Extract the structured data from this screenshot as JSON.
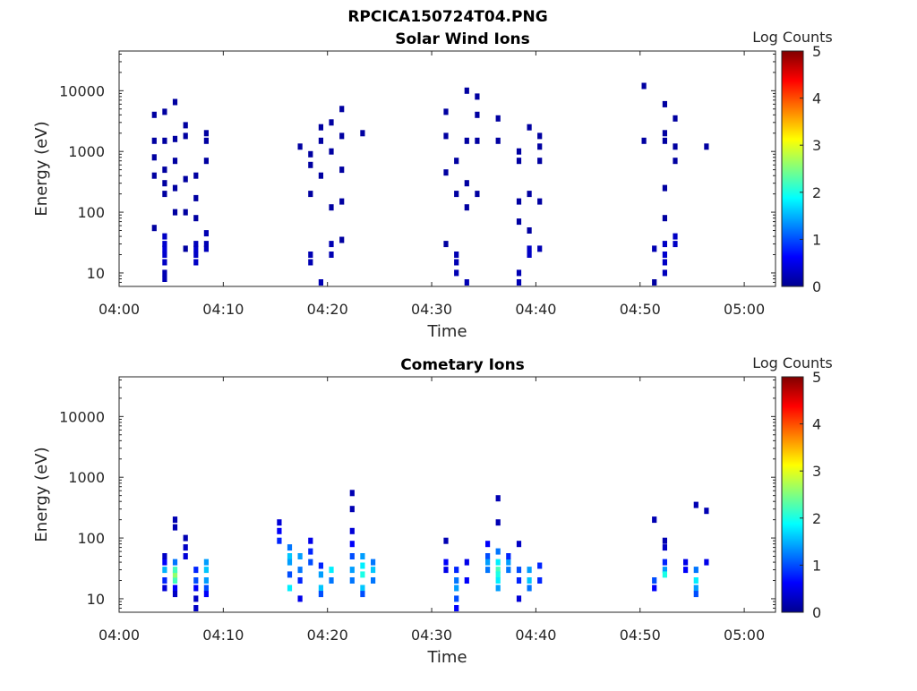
{
  "figure_title": "RPCICA150724T04.PNG",
  "colors": {
    "colormap": [
      "#00008f",
      "#0000ff",
      "#0080ff",
      "#00ffff",
      "#80ff80",
      "#ffff00",
      "#ff8000",
      "#ff0000",
      "#800000"
    ],
    "axis": "#262626"
  },
  "chart_data": [
    {
      "type": "heatmap",
      "title": "Solar Wind Ions",
      "xlabel": "Time",
      "ylabel": "Energy (eV)",
      "xlim": [
        "04:00",
        "05:03"
      ],
      "ylim": [
        6,
        45000
      ],
      "yscale": "log",
      "xticks": [
        "04:00",
        "04:10",
        "04:20",
        "04:30",
        "04:40",
        "04:50",
        "05:00"
      ],
      "yticks": [
        10,
        100,
        1000,
        10000
      ],
      "ytick_labels": [
        "10",
        "100",
        "1000",
        "10000"
      ],
      "colorbar": {
        "label": "Log Counts",
        "range": [
          0,
          5
        ],
        "ticks": [
          "0",
          "1",
          "2",
          "3",
          "4",
          "5"
        ]
      },
      "grid": false,
      "data": [
        [
          "04:04",
          15,
          0.3
        ],
        [
          "04:04",
          20,
          0.35
        ],
        [
          "04:04",
          25,
          0.4
        ],
        [
          "04:04",
          30,
          0.35
        ],
        [
          "04:04",
          10,
          0.2
        ],
        [
          "04:04",
          8,
          0.2
        ],
        [
          "04:04",
          40,
          0.3
        ],
        [
          "04:04",
          300,
          0.1
        ],
        [
          "04:04",
          500,
          0.1
        ],
        [
          "04:04",
          1500,
          0.1
        ],
        [
          "04:04",
          4500,
          0.1
        ],
        [
          "04:04",
          200,
          0.1
        ],
        [
          "04:05",
          6500,
          0.1
        ],
        [
          "04:05",
          700,
          0.1
        ],
        [
          "04:05",
          250,
          0.1
        ],
        [
          "04:05",
          1600,
          0.1
        ],
        [
          "04:05",
          100,
          0.1
        ],
        [
          "04:06",
          100,
          0.1
        ],
        [
          "04:06",
          350,
          0.1
        ],
        [
          "04:06",
          1800,
          0.1
        ],
        [
          "04:06",
          2700,
          0.1
        ],
        [
          "04:06",
          25,
          0.1
        ],
        [
          "04:07",
          20,
          0.3
        ],
        [
          "04:07",
          25,
          0.35
        ],
        [
          "04:07",
          15,
          0.3
        ],
        [
          "04:07",
          30,
          0.25
        ],
        [
          "04:07",
          80,
          0.1
        ],
        [
          "04:07",
          170,
          0.1
        ],
        [
          "04:07",
          400,
          0.1
        ],
        [
          "04:08",
          25,
          0.25
        ],
        [
          "04:08",
          30,
          0.2
        ],
        [
          "04:08",
          45,
          0.2
        ],
        [
          "04:08",
          1500,
          0.1
        ],
        [
          "04:08",
          2000,
          0.1
        ],
        [
          "04:08",
          700,
          0.1
        ],
        [
          "04:03",
          4000,
          0.1
        ],
        [
          "04:03",
          1500,
          0.1
        ],
        [
          "04:03",
          800,
          0.1
        ],
        [
          "04:03",
          400,
          0.1
        ],
        [
          "04:03",
          55,
          0.1
        ],
        [
          "04:17",
          1200,
          0.1
        ],
        [
          "04:18",
          20,
          0.2
        ],
        [
          "04:18",
          15,
          0.2
        ],
        [
          "04:18",
          600,
          0.1
        ],
        [
          "04:18",
          900,
          0.1
        ],
        [
          "04:18",
          200,
          0.1
        ],
        [
          "04:19",
          7,
          0.2
        ],
        [
          "04:19",
          2500,
          0.1
        ],
        [
          "04:19",
          1500,
          0.1
        ],
        [
          "04:19",
          400,
          0.1
        ],
        [
          "04:20",
          20,
          0.2
        ],
        [
          "04:20",
          30,
          0.2
        ],
        [
          "04:20",
          120,
          0.1
        ],
        [
          "04:20",
          1000,
          0.1
        ],
        [
          "04:20",
          3000,
          0.1
        ],
        [
          "04:21",
          35,
          0.1
        ],
        [
          "04:21",
          150,
          0.1
        ],
        [
          "04:21",
          500,
          0.1
        ],
        [
          "04:21",
          1800,
          0.1
        ],
        [
          "04:21",
          5000,
          0.1
        ],
        [
          "04:23",
          2000,
          0.1
        ],
        [
          "04:31",
          4500,
          0.1
        ],
        [
          "04:31",
          1800,
          0.1
        ],
        [
          "04:31",
          30,
          0.1
        ],
        [
          "04:31",
          450,
          0.1
        ],
        [
          "04:32",
          20,
          0.2
        ],
        [
          "04:32",
          15,
          0.2
        ],
        [
          "04:32",
          10,
          0.2
        ],
        [
          "04:32",
          200,
          0.1
        ],
        [
          "04:32",
          700,
          0.1
        ],
        [
          "04:33",
          7,
          0.2
        ],
        [
          "04:33",
          10000,
          0.1
        ],
        [
          "04:33",
          120,
          0.1
        ],
        [
          "04:33",
          1500,
          0.1
        ],
        [
          "04:33",
          300,
          0.1
        ],
        [
          "04:34",
          8000,
          0.1
        ],
        [
          "04:34",
          4000,
          0.1
        ],
        [
          "04:34",
          1500,
          0.1
        ],
        [
          "04:34",
          200,
          0.1
        ],
        [
          "04:36",
          1500,
          0.1
        ],
        [
          "04:36",
          3500,
          0.1
        ],
        [
          "04:38",
          150,
          0.1
        ],
        [
          "04:38",
          70,
          0.1
        ],
        [
          "04:38",
          700,
          0.1
        ],
        [
          "04:38",
          1000,
          0.1
        ],
        [
          "04:38",
          10,
          0.2
        ],
        [
          "04:38",
          7,
          0.2
        ],
        [
          "04:39",
          20,
          0.3
        ],
        [
          "04:39",
          25,
          0.3
        ],
        [
          "04:39",
          200,
          0.1
        ],
        [
          "04:39",
          2500,
          0.1
        ],
        [
          "04:39",
          50,
          0.1
        ],
        [
          "04:40",
          700,
          0.1
        ],
        [
          "04:40",
          1200,
          0.1
        ],
        [
          "04:40",
          150,
          0.1
        ],
        [
          "04:40",
          25,
          0.2
        ],
        [
          "04:40",
          1800,
          0.1
        ],
        [
          "04:50",
          12000,
          0.1
        ],
        [
          "04:50",
          1500,
          0.1
        ],
        [
          "04:51",
          25,
          0.2
        ],
        [
          "04:51",
          7,
          0.1
        ],
        [
          "04:52",
          30,
          0.3
        ],
        [
          "04:52",
          20,
          0.35
        ],
        [
          "04:52",
          15,
          0.3
        ],
        [
          "04:52",
          10,
          0.25
        ],
        [
          "04:52",
          2000,
          0.1
        ],
        [
          "04:52",
          6000,
          0.1
        ],
        [
          "04:52",
          1500,
          0.1
        ],
        [
          "04:52",
          250,
          0.1
        ],
        [
          "04:52",
          80,
          0.1
        ],
        [
          "04:53",
          40,
          0.3
        ],
        [
          "04:53",
          30,
          0.3
        ],
        [
          "04:53",
          1200,
          0.1
        ],
        [
          "04:53",
          3500,
          0.1
        ],
        [
          "04:53",
          700,
          0.1
        ],
        [
          "04:56",
          1200,
          0.1
        ]
      ]
    },
    {
      "type": "heatmap",
      "title": "Cometary Ions",
      "xlabel": "Time",
      "ylabel": "Energy (eV)",
      "xlim": [
        "04:00",
        "05:03"
      ],
      "ylim": [
        6,
        45000
      ],
      "yscale": "log",
      "xticks": [
        "04:00",
        "04:10",
        "04:20",
        "04:30",
        "04:40",
        "04:50",
        "05:00"
      ],
      "yticks": [
        10,
        100,
        1000,
        10000
      ],
      "ytick_labels": [
        "10",
        "100",
        "1000",
        "10000"
      ],
      "colorbar": {
        "label": "Log Counts",
        "range": [
          0,
          5
        ],
        "ticks": [
          "0",
          "1",
          "2",
          "3",
          "4",
          "5"
        ]
      },
      "grid": false,
      "data": [
        [
          "04:04",
          15,
          0.4
        ],
        [
          "04:04",
          20,
          0.8
        ],
        [
          "04:04",
          30,
          1.5
        ],
        [
          "04:04",
          40,
          0.6
        ],
        [
          "04:04",
          50,
          0.3
        ],
        [
          "04:05",
          20,
          2.2
        ],
        [
          "04:05",
          25,
          2.6
        ],
        [
          "04:05",
          30,
          2.2
        ],
        [
          "04:05",
          15,
          0.6
        ],
        [
          "04:05",
          40,
          1.2
        ],
        [
          "04:05",
          12,
          0.3
        ],
        [
          "04:05",
          200,
          0.2
        ],
        [
          "04:05",
          150,
          0.2
        ],
        [
          "04:06",
          100,
          0.2
        ],
        [
          "04:06",
          70,
          0.3
        ],
        [
          "04:06",
          50,
          0.4
        ],
        [
          "04:07",
          30,
          0.8
        ],
        [
          "04:07",
          20,
          1.0
        ],
        [
          "04:07",
          15,
          0.6
        ],
        [
          "04:07",
          10,
          0.3
        ],
        [
          "04:07",
          7,
          0.3
        ],
        [
          "04:08",
          40,
          1.4
        ],
        [
          "04:08",
          30,
          1.6
        ],
        [
          "04:08",
          20,
          1.4
        ],
        [
          "04:08",
          15,
          1.0
        ],
        [
          "04:08",
          12,
          0.6
        ],
        [
          "04:15",
          180,
          0.4
        ],
        [
          "04:15",
          130,
          0.6
        ],
        [
          "04:15",
          90,
          0.8
        ],
        [
          "04:16",
          70,
          1.2
        ],
        [
          "04:16",
          50,
          1.6
        ],
        [
          "04:16",
          40,
          1.4
        ],
        [
          "04:16",
          25,
          1.0
        ],
        [
          "04:16",
          15,
          1.8
        ],
        [
          "04:17",
          50,
          1.4
        ],
        [
          "04:17",
          30,
          1.2
        ],
        [
          "04:17",
          20,
          0.8
        ],
        [
          "04:17",
          10,
          0.5
        ],
        [
          "04:18",
          40,
          1.0
        ],
        [
          "04:18",
          60,
          0.8
        ],
        [
          "04:18",
          90,
          0.5
        ],
        [
          "04:19",
          35,
          0.8
        ],
        [
          "04:19",
          25,
          1.4
        ],
        [
          "04:19",
          15,
          1.6
        ],
        [
          "04:19",
          12,
          1.0
        ],
        [
          "04:20",
          30,
          1.8
        ],
        [
          "04:20",
          20,
          1.2
        ],
        [
          "04:22",
          20,
          1.2
        ],
        [
          "04:22",
          30,
          1.4
        ],
        [
          "04:22",
          50,
          1.0
        ],
        [
          "04:22",
          80,
          0.6
        ],
        [
          "04:22",
          130,
          0.4
        ],
        [
          "04:22",
          300,
          0.2
        ],
        [
          "04:22",
          550,
          0.2
        ],
        [
          "04:23",
          15,
          1.6
        ],
        [
          "04:23",
          25,
          2.0
        ],
        [
          "04:23",
          35,
          1.8
        ],
        [
          "04:23",
          50,
          1.4
        ],
        [
          "04:23",
          12,
          1.0
        ],
        [
          "04:24",
          20,
          1.2
        ],
        [
          "04:24",
          30,
          1.6
        ],
        [
          "04:24",
          40,
          1.2
        ],
        [
          "04:31",
          40,
          0.6
        ],
        [
          "04:31",
          30,
          0.5
        ],
        [
          "04:31",
          90,
          0.2
        ],
        [
          "04:32",
          30,
          0.8
        ],
        [
          "04:32",
          20,
          1.2
        ],
        [
          "04:32",
          15,
          1.4
        ],
        [
          "04:32",
          10,
          1.0
        ],
        [
          "04:32",
          7,
          0.6
        ],
        [
          "04:33",
          20,
          0.6
        ],
        [
          "04:33",
          40,
          0.5
        ],
        [
          "04:35",
          50,
          1.0
        ],
        [
          "04:35",
          40,
          1.4
        ],
        [
          "04:35",
          30,
          1.2
        ],
        [
          "04:35",
          80,
          0.6
        ],
        [
          "04:36",
          40,
          1.8
        ],
        [
          "04:36",
          30,
          2.2
        ],
        [
          "04:36",
          25,
          2.0
        ],
        [
          "04:36",
          20,
          1.8
        ],
        [
          "04:36",
          15,
          1.4
        ],
        [
          "04:36",
          60,
          1.2
        ],
        [
          "04:36",
          180,
          0.2
        ],
        [
          "04:36",
          450,
          0.2
        ],
        [
          "04:37",
          40,
          1.4
        ],
        [
          "04:37",
          30,
          1.2
        ],
        [
          "04:37",
          50,
          0.8
        ],
        [
          "04:38",
          30,
          1.0
        ],
        [
          "04:38",
          20,
          0.8
        ],
        [
          "04:38",
          10,
          0.4
        ],
        [
          "04:38",
          80,
          0.3
        ],
        [
          "04:39",
          30,
          1.4
        ],
        [
          "04:39",
          20,
          1.6
        ],
        [
          "04:39",
          15,
          1.2
        ],
        [
          "04:40",
          35,
          0.8
        ],
        [
          "04:40",
          20,
          0.8
        ],
        [
          "04:51",
          200,
          0.2
        ],
        [
          "04:51",
          20,
          1.0
        ],
        [
          "04:51",
          15,
          0.6
        ],
        [
          "04:52",
          30,
          1.4
        ],
        [
          "04:52",
          25,
          2.0
        ],
        [
          "04:52",
          40,
          0.8
        ],
        [
          "04:52",
          90,
          0.2
        ],
        [
          "04:52",
          70,
          0.3
        ],
        [
          "04:54",
          30,
          0.6
        ],
        [
          "04:54",
          40,
          0.5
        ],
        [
          "04:55",
          30,
          1.2
        ],
        [
          "04:55",
          20,
          1.8
        ],
        [
          "04:55",
          15,
          1.4
        ],
        [
          "04:55",
          12,
          1.0
        ],
        [
          "04:55",
          350,
          0.2
        ],
        [
          "04:56",
          40,
          0.5
        ],
        [
          "04:56",
          280,
          0.2
        ]
      ]
    }
  ]
}
